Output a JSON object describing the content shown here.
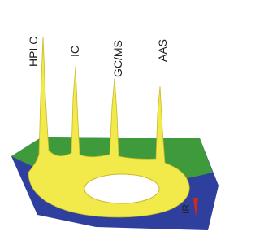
{
  "labels": [
    "HPLC",
    "IC",
    "GC/MS",
    "AAS",
    "IR"
  ]
}
